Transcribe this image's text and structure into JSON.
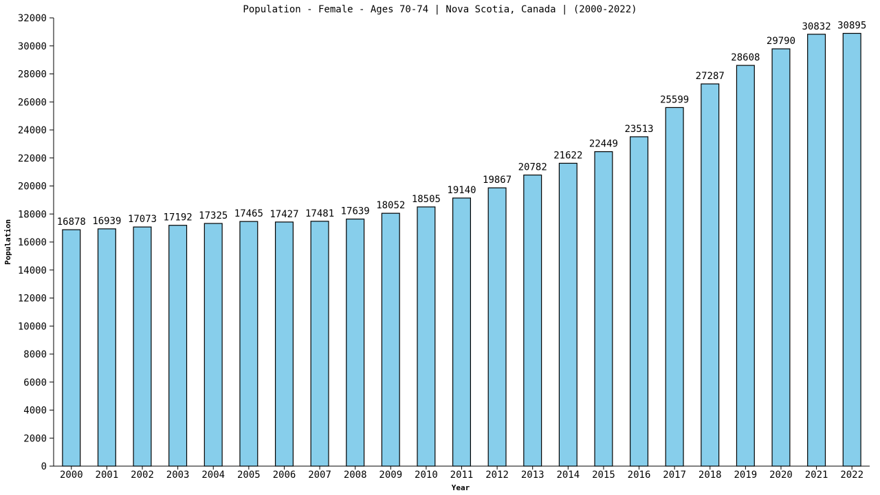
{
  "chart_data": {
    "type": "bar",
    "title": "Population - Female - Ages 70-74 | Nova Scotia, Canada |  (2000-2022)",
    "xlabel": "Year",
    "ylabel": "Population",
    "ylim": [
      0,
      32000
    ],
    "y_ticks": [
      "0",
      "2000",
      "4000",
      "6000",
      "8000",
      "10000",
      "12000",
      "14000",
      "16000",
      "18000",
      "20000",
      "22000",
      "24000",
      "26000",
      "28000",
      "30000",
      "32000"
    ],
    "categories": [
      "2000",
      "2001",
      "2002",
      "2003",
      "2004",
      "2005",
      "2006",
      "2007",
      "2008",
      "2009",
      "2010",
      "2011",
      "2012",
      "2013",
      "2014",
      "2015",
      "2016",
      "2017",
      "2018",
      "2019",
      "2020",
      "2021",
      "2022"
    ],
    "values": [
      16878,
      16939,
      17073,
      17192,
      17325,
      17465,
      17427,
      17481,
      17639,
      18052,
      18505,
      19140,
      19867,
      20782,
      21622,
      22449,
      23513,
      25599,
      27287,
      28608,
      29790,
      30832,
      30895
    ],
    "bar_color": "#87ceeb",
    "bar_edge_color": "#000000",
    "grid": false,
    "legend": "none",
    "data_labels": true
  }
}
